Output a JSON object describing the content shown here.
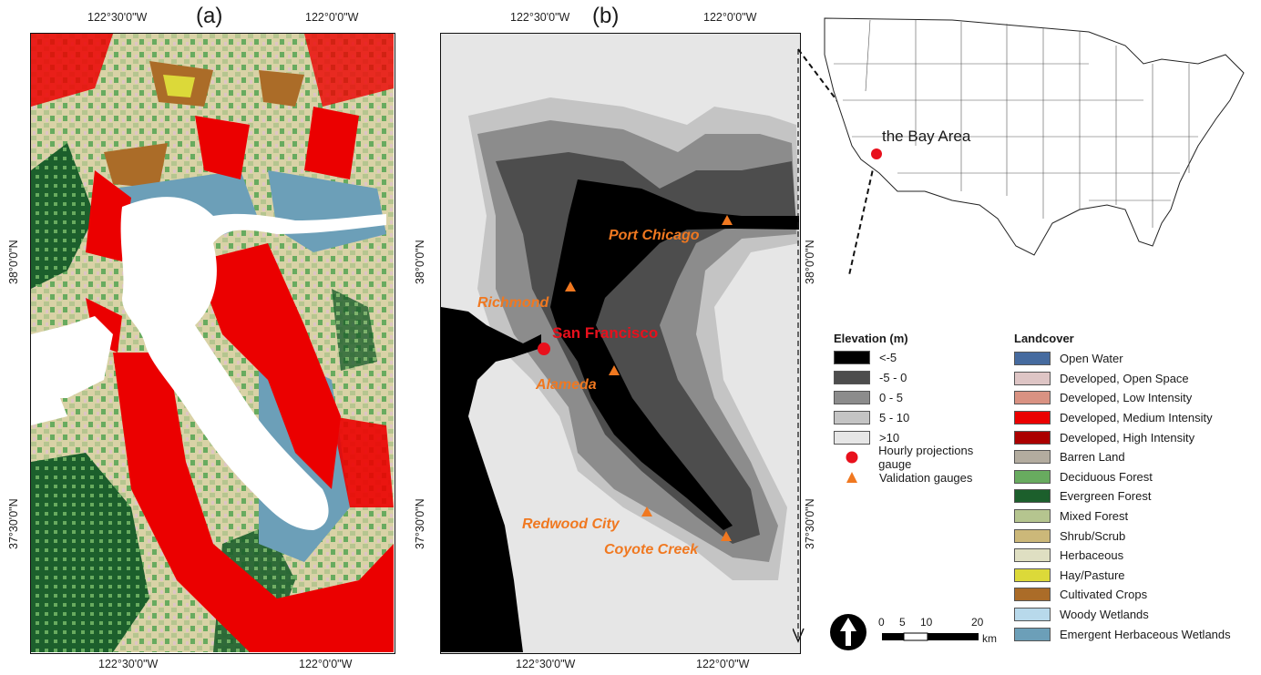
{
  "panels": {
    "a_label": "(a)",
    "b_label": "(b)"
  },
  "coords": {
    "a_top_lon1": "122°30'0\"W",
    "a_top_lon2": "122°0'0\"W",
    "a_bottom_lon1": "122°30'0\"W",
    "a_bottom_lon2": "122°0'0\"W",
    "a_left_lat1": "38°0'0\"N",
    "a_left_lat2": "37°30'0\"N",
    "b_top_lon1": "122°30'0\"W",
    "b_top_lon2": "122°0'0\"W",
    "b_bottom_lon1": "122°30'0\"W",
    "b_bottom_lon2": "122°0'0\"W",
    "b_left_lat1": "38°0'0\"N",
    "b_left_lat2": "37°30'0\"N",
    "b_right_lat1": "38°0'0\"N",
    "b_right_lat2": "37°30'0\"N"
  },
  "places": {
    "port_chicago": "Port Chicago",
    "richmond": "Richmond",
    "san_francisco": "San Francisco",
    "alameda": "Alameda",
    "redwood_city": "Redwood City",
    "coyote_creek": "Coyote Creek"
  },
  "inset": {
    "label": "the Bay Area"
  },
  "elevation_legend": {
    "title": "Elevation (m)",
    "classes": [
      {
        "label": "<-5",
        "color": "#000000"
      },
      {
        "label": "-5 - 0",
        "color": "#4d4d4d"
      },
      {
        "label": "0 - 5",
        "color": "#8c8c8c"
      },
      {
        "label": "5 - 10",
        "color": "#c4c4c4"
      },
      {
        "label": ">10",
        "color": "#e6e6e6"
      }
    ],
    "hourly_gauge": "Hourly projections gauge",
    "validation_gauges": "Validation gauges",
    "gauge_color": "#e8101c",
    "validation_color": "#f07820"
  },
  "landcover_legend": {
    "title": "Landcover",
    "classes": [
      {
        "label": "Open Water",
        "color": "#466b9f"
      },
      {
        "label": "Developed, Open Space",
        "color": "#dec5c5"
      },
      {
        "label": "Developed, Low Intensity",
        "color": "#d99282"
      },
      {
        "label": "Developed, Medium Intensity",
        "color": "#eb0000"
      },
      {
        "label": "Developed, High Intensity",
        "color": "#ab0000"
      },
      {
        "label": "Barren Land",
        "color": "#b3ac9f"
      },
      {
        "label": "Deciduous Forest",
        "color": "#68ab5f"
      },
      {
        "label": "Evergreen Forest",
        "color": "#1c5f2c"
      },
      {
        "label": "Mixed Forest",
        "color": "#b5c58f"
      },
      {
        "label": "Shrub/Scrub",
        "color": "#ccb879"
      },
      {
        "label": "Herbaceous",
        "color": "#dfdfc2"
      },
      {
        "label": "Hay/Pasture",
        "color": "#dcd939"
      },
      {
        "label": "Cultivated Crops",
        "color": "#ab6c28"
      },
      {
        "label": "Woody Wetlands",
        "color": "#b8d9eb"
      },
      {
        "label": "Emergent Herbaceous Wetlands",
        "color": "#6c9fb8"
      }
    ]
  },
  "scalebar": {
    "ticks": [
      "0",
      "5",
      "10",
      "20"
    ],
    "unit": "km"
  }
}
